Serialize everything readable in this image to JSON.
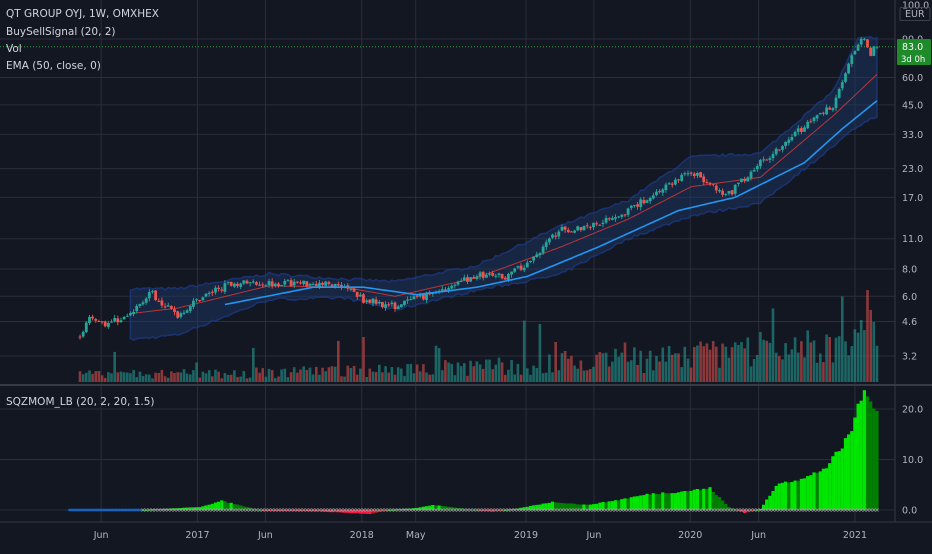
{
  "header": {
    "symbol_line": "QT GROUP OYJ, 1W, OMXHEX",
    "indicator_1": "BuySellSignal (20, 2)",
    "indicator_2": "Vol",
    "indicator_3": "EMA (50, close, 0)",
    "currency": "EUR"
  },
  "price_tag": {
    "value": "83.0",
    "countdown": "3d 0h"
  },
  "lower_pane": {
    "title": "SQZMOM_LB (20, 2, 20, 1.5)"
  },
  "colors": {
    "background": "#131722",
    "grid": "#2a2e39",
    "up": "#26a69a",
    "down": "#ef5350",
    "ema": "#2196f3",
    "band_mid": "#e53935",
    "band_fill": "#1c3a6b",
    "sqz_strong": "#00e600",
    "sqz_weak": "#008000",
    "sqz_neg": "#b71c1c",
    "sqz_dot_on": "#1565c0",
    "sqz_dot_off": "#9e9e9e",
    "price_tag": "#1e8a2a"
  },
  "chart_data": [
    {
      "type": "candlestick",
      "pane": "price",
      "scale": "log",
      "ylim": [
        2.6,
        100
      ],
      "y_ticks": [
        100.0,
        90.0,
        83.0,
        60.0,
        45.0,
        33.0,
        23.0,
        17.0,
        11.0,
        8.0,
        6.0,
        4.6,
        3.2
      ],
      "y_tick_labels": [
        "100.0",
        "90.0",
        "83.0",
        "60.0",
        "45.0",
        "33.0",
        "23.0",
        "17.0",
        "11.0",
        "8.0",
        "6.0",
        "4.6",
        "3.2"
      ],
      "x_ticks": [
        "Jun",
        "2017",
        "Jun",
        "2018",
        "May",
        "2019",
        "Jun",
        "2020",
        "Jun",
        "2021"
      ],
      "price_path": [
        [
          "2016-04-15",
          3.9
        ],
        [
          "2016-05-06",
          4.9
        ],
        [
          "2016-06-10",
          4.5
        ],
        [
          "2016-08-05",
          4.9
        ],
        [
          "2016-09-16",
          6.3
        ],
        [
          "2016-11-18",
          4.9
        ],
        [
          "2017-01-06",
          5.9
        ],
        [
          "2017-03-17",
          6.9
        ],
        [
          "2017-06-09",
          6.9
        ],
        [
          "2017-09-15",
          6.9
        ],
        [
          "2017-11-24",
          6.7
        ],
        [
          "2018-01-05",
          5.8
        ],
        [
          "2018-03-16",
          5.4
        ],
        [
          "2018-06-15",
          6.3
        ],
        [
          "2018-09-14",
          7.5
        ],
        [
          "2018-11-16",
          7.4
        ],
        [
          "2019-01-04",
          8.4
        ],
        [
          "2019-03-15",
          12.0
        ],
        [
          "2019-05-17",
          12.5
        ],
        [
          "2019-08-16",
          14.8
        ],
        [
          "2019-10-11",
          17.5
        ],
        [
          "2020-01-03",
          22.5
        ],
        [
          "2020-03-20",
          17.0
        ],
        [
          "2020-06-05",
          24.5
        ],
        [
          "2020-09-11",
          36.0
        ],
        [
          "2020-11-13",
          45.0
        ],
        [
          "2020-12-18",
          70.0
        ],
        [
          "2021-01-22",
          92.0
        ],
        [
          "2021-02-05",
          78.0
        ],
        [
          "2021-02-19",
          83.0
        ]
      ],
      "ema50_path": [
        [
          "2017-03-03",
          5.5
        ],
        [
          "2017-09-15",
          6.6
        ],
        [
          "2018-01-05",
          6.6
        ],
        [
          "2018-05-04",
          6.1
        ],
        [
          "2018-09-14",
          6.6
        ],
        [
          "2019-01-04",
          7.4
        ],
        [
          "2019-06-07",
          10.0
        ],
        [
          "2019-12-06",
          14.8
        ],
        [
          "2020-04-10",
          17.0
        ],
        [
          "2020-09-11",
          24.5
        ],
        [
          "2020-12-04",
          35.0
        ],
        [
          "2021-02-19",
          47.0
        ]
      ],
      "band_mid_path": [
        [
          "2016-08-05",
          5.0
        ],
        [
          "2016-11-18",
          5.3
        ],
        [
          "2017-06-09",
          6.7
        ],
        [
          "2017-11-24",
          6.6
        ],
        [
          "2018-03-16",
          6.0
        ],
        [
          "2018-09-14",
          7.3
        ],
        [
          "2019-03-15",
          10.0
        ],
        [
          "2019-08-16",
          13.5
        ],
        [
          "2020-01-03",
          19.0
        ],
        [
          "2020-06-05",
          21.0
        ],
        [
          "2020-11-13",
          40.0
        ],
        [
          "2021-02-19",
          62.0
        ]
      ],
      "band_upper_path": [
        [
          "2016-08-05",
          6.5
        ],
        [
          "2016-11-18",
          6.5
        ],
        [
          "2017-06-09",
          7.6
        ],
        [
          "2017-11-24",
          7.2
        ],
        [
          "2018-03-16",
          7.0
        ],
        [
          "2018-09-14",
          8.3
        ],
        [
          "2019-03-15",
          12.5
        ],
        [
          "2019-08-16",
          16.5
        ],
        [
          "2020-01-03",
          26.0
        ],
        [
          "2020-06-05",
          27.0
        ],
        [
          "2020-11-13",
          52.0
        ],
        [
          "2021-01-08",
          90.0
        ],
        [
          "2021-02-19",
          92.0
        ]
      ],
      "band_lower_path": [
        [
          "2016-08-05",
          3.8
        ],
        [
          "2016-11-18",
          4.0
        ],
        [
          "2017-06-09",
          5.8
        ],
        [
          "2017-11-24",
          5.9
        ],
        [
          "2018-03-16",
          5.2
        ],
        [
          "2018-09-14",
          6.4
        ],
        [
          "2019-03-15",
          7.5
        ],
        [
          "2019-08-16",
          11.0
        ],
        [
          "2020-01-03",
          14.0
        ],
        [
          "2020-06-05",
          16.0
        ],
        [
          "2020-11-13",
          29.0
        ],
        [
          "2021-01-08",
          36.0
        ],
        [
          "2021-02-19",
          40.0
        ]
      ],
      "volume_spikes": [
        [
          "2018-01-05",
          45
        ],
        [
          "2019-03-08",
          40
        ],
        [
          "2019-02-01",
          58
        ],
        [
          "2019-06-14",
          30
        ],
        [
          "2020-06-05",
          50
        ],
        [
          "2020-11-06",
          45
        ],
        [
          "2021-01-15",
          62
        ],
        [
          "2021-01-29",
          92
        ],
        [
          "2021-02-05",
          72
        ],
        [
          "2021-02-12",
          60
        ]
      ]
    },
    {
      "type": "bar",
      "pane": "SQZMOM_LB",
      "ylim": [
        -2.5,
        23.5
      ],
      "y_ticks": [
        0.0,
        10.0,
        20.0
      ],
      "y_tick_labels": [
        "0.0",
        "10.0",
        "20.0"
      ],
      "momentum_path": [
        [
          "2016-09-02",
          0.0
        ],
        [
          "2017-01-06",
          0.6
        ],
        [
          "2017-02-24",
          1.8
        ],
        [
          "2017-04-21",
          0.6
        ],
        [
          "2017-05-19",
          0.0
        ],
        [
          "2017-09-29",
          -0.3
        ],
        [
          "2017-12-08",
          -0.6
        ],
        [
          "2018-01-19",
          -0.8
        ],
        [
          "2018-03-02",
          0.0
        ],
        [
          "2018-05-04",
          0.4
        ],
        [
          "2018-06-08",
          1.0
        ],
        [
          "2018-08-24",
          0.2
        ],
        [
          "2018-10-19",
          -0.3
        ],
        [
          "2018-12-14",
          0.3
        ],
        [
          "2019-03-01",
          1.6
        ],
        [
          "2019-05-17",
          1.0
        ],
        [
          "2019-07-19",
          1.9
        ],
        [
          "2019-10-04",
          3.2
        ],
        [
          "2019-12-06",
          3.6
        ],
        [
          "2020-02-14",
          4.3
        ],
        [
          "2020-03-27",
          0.6
        ],
        [
          "2020-05-01",
          -0.6
        ],
        [
          "2020-06-05",
          0.2
        ],
        [
          "2020-07-17",
          5.5
        ],
        [
          "2020-09-11",
          6.2
        ],
        [
          "2020-10-30",
          8.5
        ],
        [
          "2020-12-04",
          12.5
        ],
        [
          "2020-12-25",
          16.0
        ],
        [
          "2021-01-15",
          22.8
        ],
        [
          "2021-02-19",
          20.8
        ]
      ],
      "squeeze_on_until": "2016-08-26"
    }
  ]
}
